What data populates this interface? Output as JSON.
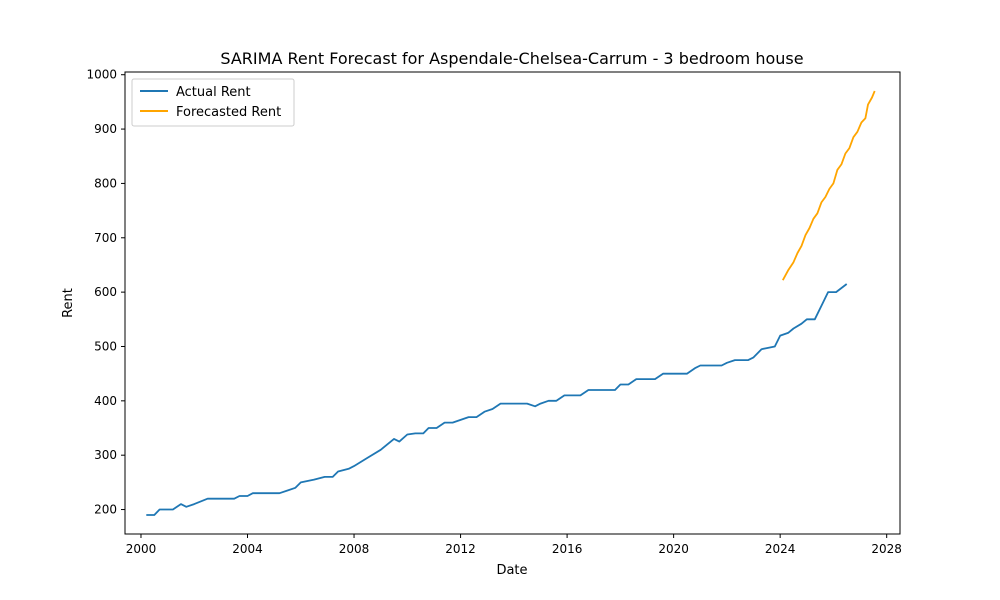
{
  "chart_data": {
    "type": "line",
    "title": "SARIMA Rent Forecast for Aspendale-Chelsea-Carrum - 3 bedroom house",
    "xlabel": "Date",
    "ylabel": "Rent",
    "xlim": [
      1999.4,
      2028.5
    ],
    "ylim": [
      155,
      1005
    ],
    "xticks": [
      2000,
      2004,
      2008,
      2012,
      2016,
      2020,
      2024,
      2028
    ],
    "yticks": [
      200,
      300,
      400,
      500,
      600,
      700,
      800,
      900,
      1000
    ],
    "grid": false,
    "legend_position": "top-left",
    "series": [
      {
        "name": "Actual Rent",
        "color": "#1f77b4",
        "points": [
          [
            2000.2,
            190
          ],
          [
            2000.5,
            190
          ],
          [
            2000.7,
            200
          ],
          [
            2001.0,
            200
          ],
          [
            2001.2,
            200
          ],
          [
            2001.5,
            210
          ],
          [
            2001.7,
            205
          ],
          [
            2002.0,
            210
          ],
          [
            2002.5,
            220
          ],
          [
            2003.0,
            220
          ],
          [
            2003.5,
            220
          ],
          [
            2003.7,
            225
          ],
          [
            2004.0,
            225
          ],
          [
            2004.2,
            230
          ],
          [
            2004.5,
            230
          ],
          [
            2005.0,
            230
          ],
          [
            2005.2,
            230
          ],
          [
            2005.5,
            235
          ],
          [
            2005.8,
            240
          ],
          [
            2006.0,
            250
          ],
          [
            2006.5,
            255
          ],
          [
            2006.9,
            260
          ],
          [
            2007.2,
            260
          ],
          [
            2007.4,
            270
          ],
          [
            2007.8,
            275
          ],
          [
            2008.0,
            280
          ],
          [
            2008.5,
            295
          ],
          [
            2009.0,
            310
          ],
          [
            2009.5,
            330
          ],
          [
            2009.7,
            325
          ],
          [
            2010.0,
            338
          ],
          [
            2010.3,
            340
          ],
          [
            2010.6,
            340
          ],
          [
            2010.8,
            350
          ],
          [
            2011.1,
            350
          ],
          [
            2011.4,
            360
          ],
          [
            2011.7,
            360
          ],
          [
            2012.0,
            365
          ],
          [
            2012.3,
            370
          ],
          [
            2012.6,
            370
          ],
          [
            2012.9,
            380
          ],
          [
            2013.2,
            385
          ],
          [
            2013.5,
            395
          ],
          [
            2014.0,
            395
          ],
          [
            2014.5,
            395
          ],
          [
            2014.8,
            390
          ],
          [
            2015.0,
            395
          ],
          [
            2015.3,
            400
          ],
          [
            2015.6,
            400
          ],
          [
            2015.9,
            410
          ],
          [
            2016.2,
            410
          ],
          [
            2016.5,
            410
          ],
          [
            2016.8,
            420
          ],
          [
            2017.0,
            420
          ],
          [
            2017.5,
            420
          ],
          [
            2017.8,
            420
          ],
          [
            2018.0,
            430
          ],
          [
            2018.3,
            430
          ],
          [
            2018.6,
            440
          ],
          [
            2019.0,
            440
          ],
          [
            2019.3,
            440
          ],
          [
            2019.6,
            450
          ],
          [
            2020.0,
            450
          ],
          [
            2020.3,
            450
          ],
          [
            2020.5,
            450
          ],
          [
            2020.8,
            460
          ],
          [
            2021.0,
            465
          ],
          [
            2021.5,
            465
          ],
          [
            2021.8,
            465
          ],
          [
            2022.0,
            470
          ],
          [
            2022.3,
            475
          ],
          [
            2022.6,
            475
          ],
          [
            2022.8,
            475
          ],
          [
            2023.0,
            480
          ],
          [
            2023.3,
            495
          ],
          [
            2023.5,
            497
          ],
          [
            2023.8,
            500
          ],
          [
            2024.0,
            520
          ],
          [
            2024.3,
            525
          ],
          [
            2024.5,
            533
          ],
          [
            2024.8,
            542
          ],
          [
            2025.0,
            550
          ],
          [
            2025.3,
            550
          ],
          [
            2025.6,
            580
          ],
          [
            2025.8,
            600
          ],
          [
            2026.1,
            600
          ],
          [
            2026.5,
            615
          ]
        ]
      },
      {
        "name": "Forecasted Rent",
        "color": "#ffa500",
        "points": [
          [
            2024.1,
            622
          ],
          [
            2024.3,
            640
          ],
          [
            2024.5,
            655
          ],
          [
            2024.65,
            672
          ],
          [
            2024.8,
            685
          ],
          [
            2024.95,
            705
          ],
          [
            2025.1,
            718
          ],
          [
            2025.25,
            735
          ],
          [
            2025.4,
            745
          ],
          [
            2025.55,
            765
          ],
          [
            2025.7,
            775
          ],
          [
            2025.85,
            790
          ],
          [
            2026.0,
            800
          ],
          [
            2026.15,
            825
          ],
          [
            2026.3,
            835
          ],
          [
            2026.45,
            855
          ],
          [
            2026.6,
            865
          ],
          [
            2026.75,
            885
          ],
          [
            2026.9,
            895
          ],
          [
            2027.05,
            912
          ],
          [
            2027.2,
            920
          ],
          [
            2027.3,
            945
          ],
          [
            2027.45,
            958
          ],
          [
            2027.55,
            970
          ]
        ]
      }
    ]
  }
}
